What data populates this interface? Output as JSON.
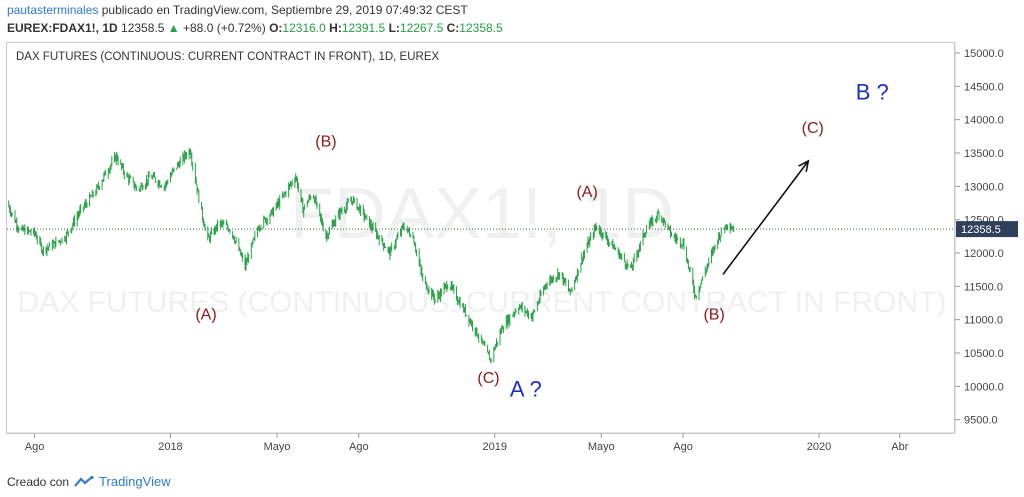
{
  "header": {
    "user": "pautasterminales",
    "published_text": "publicado en TradingView.com, Septiembre 29, 2019 07:49:32 CEST",
    "symbol": "EUREX:FDAX1!, 1D",
    "last": "12358.5",
    "change": "+88.0 (+0.72%)",
    "o_label": "O:",
    "o_value": "12316.0",
    "h_label": "H:",
    "h_value": "12391.5",
    "l_label": "L:",
    "l_value": "12267.5",
    "c_label": "C:",
    "c_value": "12358.5"
  },
  "colors": {
    "bar": "#27a046",
    "wave_red": "#8b1a1a",
    "wave_blue": "#1f2fbf",
    "price_tag": "#31405a"
  },
  "footer": {
    "created_with": "Creado con",
    "brand": "TradingView"
  },
  "chart_data": {
    "type": "bar",
    "title": "DAX FUTURES (CONTINUOUS: CURRENT CONTRACT IN FRONT), 1D, EUREX",
    "watermark_symbol": "FDAX1!, 1D",
    "watermark_name": "DAX FUTURES (CONTINUOUS: CURRENT CONTRACT IN FRONT)",
    "y_ticks": [
      9500,
      10000,
      10500,
      11000,
      11500,
      12000,
      12500,
      13000,
      13500,
      14000,
      14500,
      15000
    ],
    "y_tick_labels": [
      "9500.0",
      "10000.0",
      "10500.0",
      "11000.0",
      "11500.0",
      "12000.0",
      "12500.0",
      "13000.0",
      "13500.0",
      "14000.0",
      "14500.0",
      "15000.0"
    ],
    "ylim": [
      9300,
      15150
    ],
    "x_range": [
      "2017-07-01",
      "2020-06-01"
    ],
    "x_ticks": [
      {
        "date": "2017-08-01",
        "label": "Ago"
      },
      {
        "date": "2018-01-01",
        "label": "2018"
      },
      {
        "date": "2018-05-01",
        "label": "Mayo"
      },
      {
        "date": "2018-08-01",
        "label": "Ago"
      },
      {
        "date": "2019-01-01",
        "label": "2019"
      },
      {
        "date": "2019-05-01",
        "label": "Mayo"
      },
      {
        "date": "2019-08-01",
        "label": "Ago"
      },
      {
        "date": "2020-01-01",
        "label": "2020"
      },
      {
        "date": "2020-04-01",
        "label": "Abr"
      }
    ],
    "last_price": 12358.5,
    "last_price_label": "12358.5",
    "price_path": [
      [
        "2017-07-01",
        12750
      ],
      [
        "2017-07-15",
        12350
      ],
      [
        "2017-08-01",
        12300
      ],
      [
        "2017-08-10",
        12050
      ],
      [
        "2017-08-25",
        12150
      ],
      [
        "2017-09-05",
        12250
      ],
      [
        "2017-09-20",
        12600
      ],
      [
        "2017-10-10",
        12950
      ],
      [
        "2017-10-20",
        13200
      ],
      [
        "2017-11-01",
        13450
      ],
      [
        "2017-11-10",
        13200
      ],
      [
        "2017-11-25",
        12950
      ],
      [
        "2017-12-10",
        13150
      ],
      [
        "2017-12-25",
        13000
      ],
      [
        "2018-01-05",
        13250
      ],
      [
        "2018-01-23",
        13550
      ],
      [
        "2018-02-05",
        12600
      ],
      [
        "2018-02-12",
        12200
      ],
      [
        "2018-02-25",
        12450
      ],
      [
        "2018-03-10",
        12350
      ],
      [
        "2018-03-26",
        11800
      ],
      [
        "2018-04-10",
        12400
      ],
      [
        "2018-04-25",
        12600
      ],
      [
        "2018-05-10",
        12900
      ],
      [
        "2018-05-22",
        13150
      ],
      [
        "2018-05-30",
        12650
      ],
      [
        "2018-06-10",
        12900
      ],
      [
        "2018-06-25",
        12250
      ],
      [
        "2018-07-10",
        12600
      ],
      [
        "2018-07-25",
        12800
      ],
      [
        "2018-08-05",
        12600
      ],
      [
        "2018-08-20",
        12300
      ],
      [
        "2018-09-05",
        12000
      ],
      [
        "2018-09-20",
        12400
      ],
      [
        "2018-10-01",
        12250
      ],
      [
        "2018-10-12",
        11600
      ],
      [
        "2018-10-26",
        11300
      ],
      [
        "2018-11-10",
        11550
      ],
      [
        "2018-11-25",
        11200
      ],
      [
        "2018-12-10",
        10850
      ],
      [
        "2018-12-27",
        10400
      ],
      [
        "2019-01-10",
        10900
      ],
      [
        "2019-01-28",
        11200
      ],
      [
        "2019-02-12",
        11050
      ],
      [
        "2019-02-28",
        11550
      ],
      [
        "2019-03-15",
        11700
      ],
      [
        "2019-03-27",
        11400
      ],
      [
        "2019-04-10",
        11950
      ],
      [
        "2019-04-25",
        12400
      ],
      [
        "2019-05-05",
        12250
      ],
      [
        "2019-05-20",
        12000
      ],
      [
        "2019-06-03",
        11750
      ],
      [
        "2019-06-20",
        12350
      ],
      [
        "2019-07-05",
        12600
      ],
      [
        "2019-07-20",
        12250
      ],
      [
        "2019-08-01",
        12150
      ],
      [
        "2019-08-15",
        11350
      ],
      [
        "2019-08-28",
        11800
      ],
      [
        "2019-09-10",
        12250
      ],
      [
        "2019-09-20",
        12450
      ],
      [
        "2019-09-27",
        12358
      ]
    ],
    "annotations": [
      {
        "text": "(A)",
        "date": "2018-02-10",
        "price": 11000,
        "color": "red"
      },
      {
        "text": "(B)",
        "date": "2018-06-25",
        "price": 13600,
        "color": "red"
      },
      {
        "text": "(C)",
        "date": "2018-12-25",
        "price": 10050,
        "color": "red"
      },
      {
        "text": "A ?",
        "date": "2019-02-05",
        "price": 9850,
        "color": "blue"
      },
      {
        "text": "(A)",
        "date": "2019-04-15",
        "price": 12840,
        "color": "red"
      },
      {
        "text": "(B)",
        "date": "2019-09-05",
        "price": 11000,
        "color": "red"
      },
      {
        "text": "(C)",
        "date": "2019-12-25",
        "price": 13800,
        "color": "red"
      },
      {
        "text": "B ?",
        "date": "2020-03-01",
        "price": 14300,
        "color": "blue"
      }
    ],
    "arrow": {
      "from": [
        "2019-09-15",
        11680
      ],
      "to": [
        "2019-12-20",
        13380
      ]
    }
  }
}
